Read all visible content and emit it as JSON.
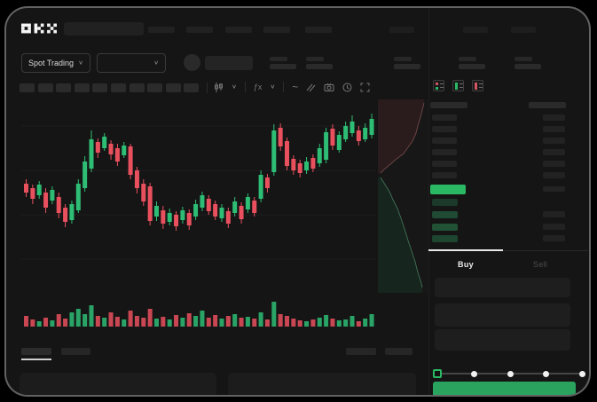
{
  "app": {
    "brand": "OKX"
  },
  "icons": {
    "chevron_down": "∨",
    "indicator_fx": "ƒx",
    "line_tool": "~"
  },
  "header": {
    "market_dropdown_label": "Spot Trading"
  },
  "orderbook": {
    "view_icons": [
      "book-combined-icon",
      "book-bids-icon",
      "book-asks-icon"
    ],
    "asks_rows": 6,
    "bids_rows": 4,
    "tabs": [
      {
        "label": "Buy",
        "active": true
      },
      {
        "label": "Sell",
        "active": false
      }
    ]
  },
  "trade_form": {
    "inputs": 3,
    "slider": {
      "steps": 5,
      "active_index": 0
    },
    "accent_green": "#2aa35f"
  },
  "colors": {
    "up": "#2ebd74",
    "down": "#e9505e",
    "price_highlight": "#2bb864",
    "bid_row_greens": [
      "#1c3a2a",
      "#1f4a33",
      "#215236",
      "#1d4530"
    ]
  },
  "chart_data": {
    "type": "candlestick_with_volume",
    "title": "",
    "xlabel": "",
    "ylabel": "",
    "axis_labels_visible": false,
    "grid": "faint-horizontal",
    "up_color": "#2ebd74",
    "down_color": "#e9505e",
    "candles": [
      [
        90,
        95,
        105,
        110,
        "d"
      ],
      [
        96,
        100,
        112,
        118,
        "d"
      ],
      [
        92,
        96,
        108,
        112,
        "u"
      ],
      [
        100,
        105,
        122,
        128,
        "d"
      ],
      [
        98,
        102,
        114,
        118,
        "u"
      ],
      [
        105,
        110,
        128,
        134,
        "d"
      ],
      [
        118,
        122,
        138,
        144,
        "d"
      ],
      [
        114,
        118,
        136,
        140,
        "u"
      ],
      [
        90,
        95,
        125,
        128,
        "u"
      ],
      [
        64,
        70,
        100,
        104,
        "u"
      ],
      [
        35,
        45,
        78,
        82,
        "u"
      ],
      [
        44,
        48,
        60,
        66,
        "d"
      ],
      [
        38,
        42,
        55,
        58,
        "u"
      ],
      [
        46,
        50,
        62,
        68,
        "d"
      ],
      [
        50,
        55,
        70,
        75,
        "d"
      ],
      [
        48,
        52,
        63,
        66,
        "u"
      ],
      [
        50,
        53,
        85,
        90,
        "d"
      ],
      [
        76,
        80,
        100,
        106,
        "d"
      ],
      [
        90,
        95,
        115,
        120,
        "d"
      ],
      [
        94,
        98,
        137,
        142,
        "d"
      ],
      [
        115,
        120,
        132,
        137,
        "u"
      ],
      [
        120,
        125,
        140,
        146,
        "d"
      ],
      [
        123,
        128,
        138,
        142,
        "u"
      ],
      [
        126,
        130,
        143,
        148,
        "d"
      ],
      [
        121,
        125,
        136,
        140,
        "u"
      ],
      [
        124,
        128,
        142,
        147,
        "d"
      ],
      [
        113,
        118,
        132,
        136,
        "u"
      ],
      [
        104,
        108,
        122,
        126,
        "u"
      ],
      [
        108,
        112,
        126,
        130,
        "d"
      ],
      [
        114,
        118,
        132,
        136,
        "d"
      ],
      [
        118,
        122,
        134,
        138,
        "u"
      ],
      [
        122,
        126,
        140,
        145,
        "d"
      ],
      [
        110,
        115,
        128,
        132,
        "u"
      ],
      [
        116,
        120,
        135,
        140,
        "d"
      ],
      [
        106,
        110,
        124,
        128,
        "u"
      ],
      [
        110,
        114,
        128,
        132,
        "d"
      ],
      [
        80,
        85,
        112,
        116,
        "u"
      ],
      [
        84,
        88,
        100,
        105,
        "d"
      ],
      [
        28,
        35,
        82,
        86,
        "u"
      ],
      [
        27,
        32,
        53,
        58,
        "d"
      ],
      [
        43,
        47,
        75,
        80,
        "d"
      ],
      [
        63,
        67,
        80,
        85,
        "d"
      ],
      [
        68,
        72,
        83,
        88,
        "d"
      ],
      [
        65,
        70,
        80,
        84,
        "u"
      ],
      [
        62,
        66,
        78,
        82,
        "d"
      ],
      [
        50,
        55,
        72,
        76,
        "u"
      ],
      [
        32,
        37,
        68,
        72,
        "u"
      ],
      [
        28,
        33,
        52,
        57,
        "d"
      ],
      [
        36,
        40,
        57,
        60,
        "u"
      ],
      [
        25,
        30,
        45,
        48,
        "u"
      ],
      [
        18,
        25,
        38,
        42,
        "u"
      ],
      [
        30,
        35,
        47,
        52,
        "d"
      ],
      [
        27,
        32,
        45,
        48,
        "u"
      ],
      [
        16,
        22,
        40,
        44,
        "u"
      ]
    ],
    "volume": [
      12,
      8,
      6,
      10,
      7,
      14,
      9,
      16,
      20,
      14,
      24,
      12,
      10,
      16,
      11,
      8,
      18,
      12,
      10,
      20,
      9,
      11,
      8,
      13,
      10,
      15,
      12,
      18,
      10,
      13,
      9,
      12,
      14,
      10,
      11,
      9,
      16,
      8,
      28,
      14,
      12,
      9,
      7,
      6,
      8,
      10,
      13,
      9,
      7,
      8,
      12,
      6,
      9,
      14
    ]
  },
  "depth_chart": {
    "type": "vertical_depth",
    "ask_fill": "#2a1b1c",
    "ask_line": "#6b4446",
    "bid_fill": "#16251d",
    "bid_line": "#3f6b52",
    "asks_points": [
      [
        52,
        4
      ],
      [
        50,
        12
      ],
      [
        48,
        20
      ],
      [
        45,
        30
      ],
      [
        43,
        38
      ],
      [
        39,
        47
      ],
      [
        34,
        54
      ],
      [
        29,
        61
      ],
      [
        21,
        67
      ],
      [
        13,
        74
      ],
      [
        7,
        79
      ],
      [
        3,
        83
      ]
    ],
    "bids_points": [
      [
        3,
        88
      ],
      [
        8,
        96
      ],
      [
        13,
        104
      ],
      [
        17,
        113
      ],
      [
        22,
        123
      ],
      [
        26,
        134
      ],
      [
        30,
        146
      ],
      [
        34,
        159
      ],
      [
        38,
        171
      ],
      [
        42,
        183
      ],
      [
        45,
        195
      ],
      [
        48,
        204
      ],
      [
        50,
        212
      ]
    ]
  }
}
